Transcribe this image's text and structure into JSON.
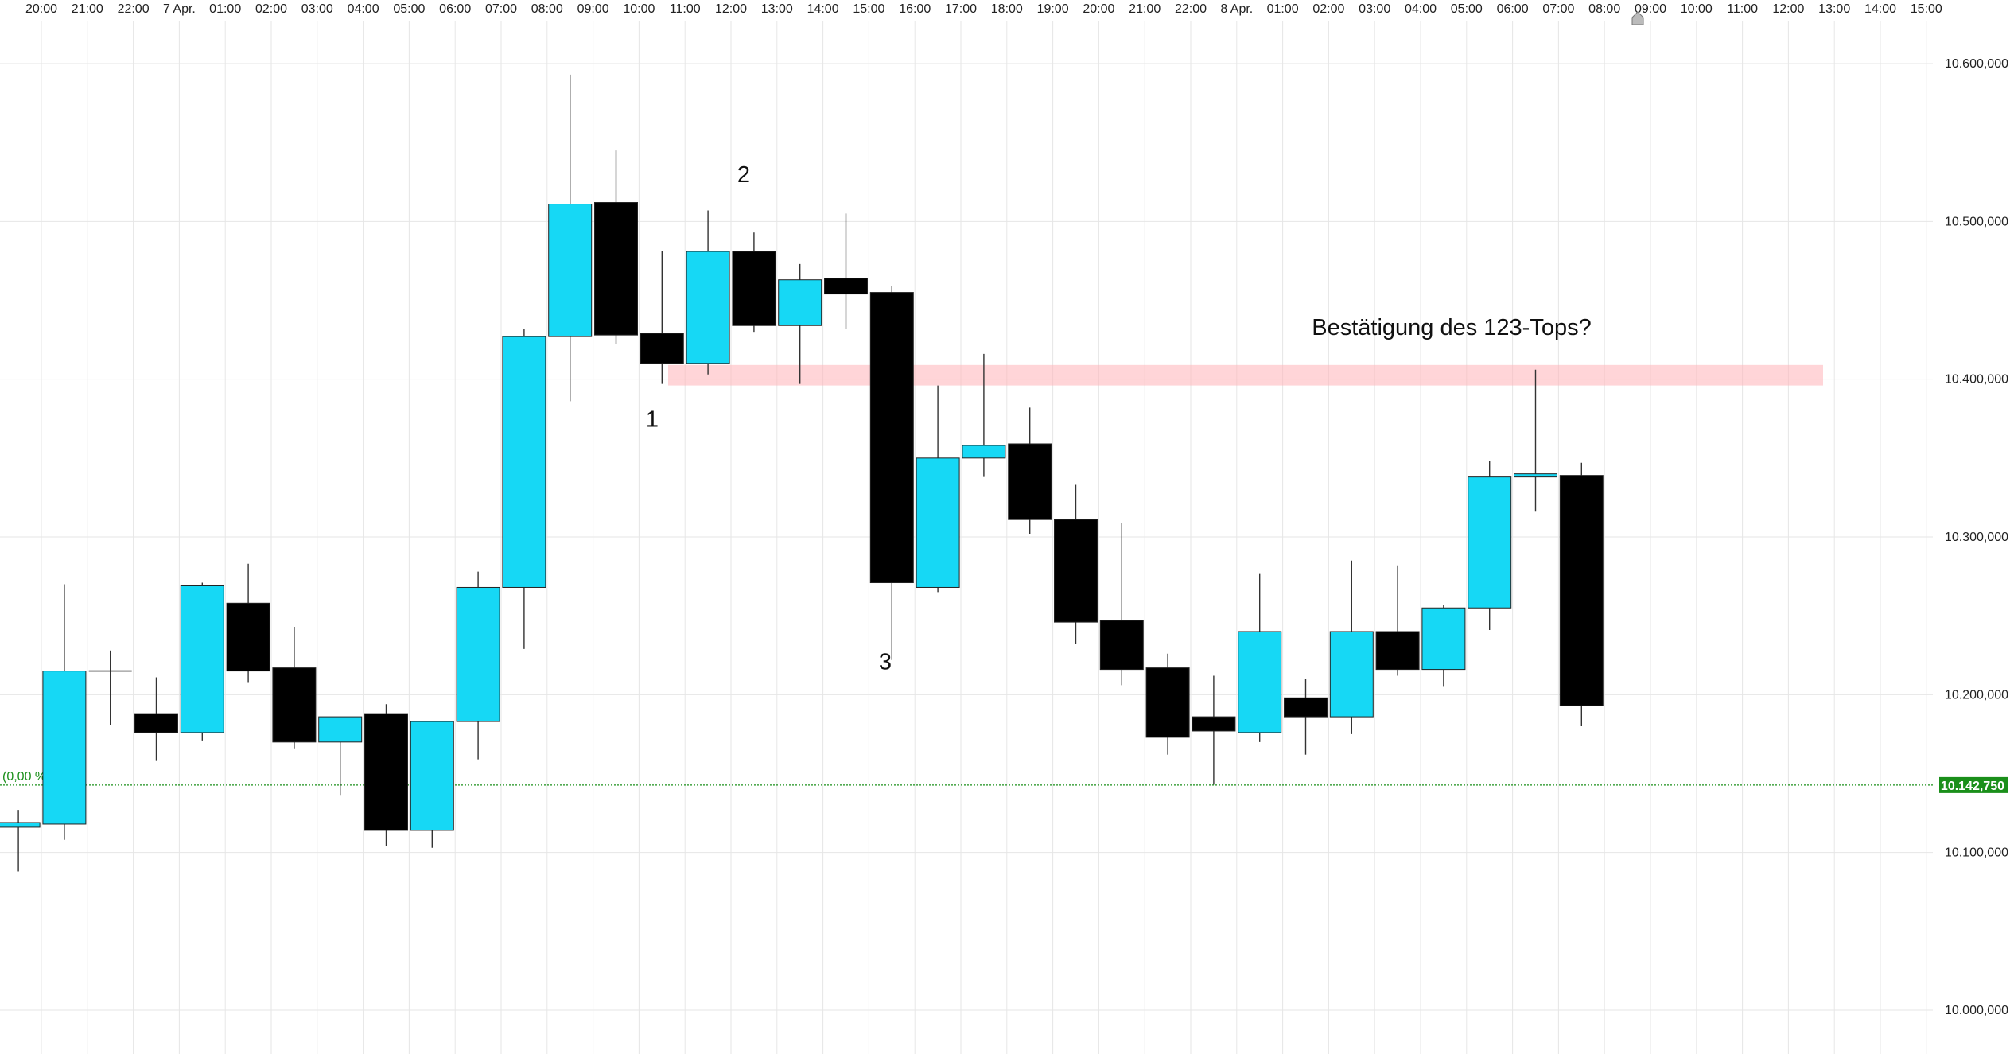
{
  "chart_data": {
    "type": "candlestick",
    "x_tick_labels": [
      "20:00",
      "21:00",
      "22:00",
      "7 Apr.",
      "01:00",
      "02:00",
      "03:00",
      "04:00",
      "05:00",
      "06:00",
      "07:00",
      "08:00",
      "09:00",
      "10:00",
      "11:00",
      "12:00",
      "13:00",
      "14:00",
      "15:00",
      "16:00",
      "17:00",
      "18:00",
      "19:00",
      "20:00",
      "21:00",
      "22:00",
      "8 Apr.",
      "01:00",
      "02:00",
      "03:00",
      "04:00",
      "05:00",
      "06:00",
      "07:00",
      "08:00",
      "09:00",
      "10:00",
      "11:00",
      "12:00",
      "13:00",
      "14:00",
      "15:00"
    ],
    "y_tick_labels": [
      "10.600,000",
      "10.500,000",
      "10.400,000",
      "10.300,000",
      "10.200,000",
      "10.100,000",
      "10.000,000"
    ],
    "y_ticks": [
      10600000,
      10500000,
      10400000,
      10300000,
      10200000,
      10100000,
      10000000
    ],
    "ylim": [
      9990000,
      10640000
    ],
    "grid": true,
    "colors": {
      "up": "#16d8f5",
      "down": "#000000",
      "wick": "#333333",
      "zone": "#ffb3b8",
      "reference": "#1a8f1a",
      "grid": "#e6e6e6"
    },
    "candles": [
      {
        "t": "19:30",
        "open": 10116000,
        "high": 10127000,
        "low": 10088000,
        "close": 10119000
      },
      {
        "t": "20:30",
        "open": 10118000,
        "high": 10270000,
        "low": 10108000,
        "close": 10215000
      },
      {
        "t": "21:30",
        "open": 10215000,
        "high": 10228000,
        "low": 10181000,
        "close": 10215000
      },
      {
        "t": "22:30",
        "open": 10188000,
        "high": 10211000,
        "low": 10158000,
        "close": 10176000
      },
      {
        "t": "23:30",
        "open": 10176000,
        "high": 10271000,
        "low": 10171000,
        "close": 10269000
      },
      {
        "t": "00:30",
        "open": 10258000,
        "high": 10283000,
        "low": 10208000,
        "close": 10215000
      },
      {
        "t": "01:30",
        "open": 10217000,
        "high": 10243000,
        "low": 10166000,
        "close": 10170000
      },
      {
        "t": "02:30",
        "open": 10170000,
        "high": 10185000,
        "low": 10136000,
        "close": 10186000
      },
      {
        "t": "03:30",
        "open": 10188000,
        "high": 10194000,
        "low": 10104000,
        "close": 10114000
      },
      {
        "t": "04:30",
        "open": 10114000,
        "high": 10183000,
        "low": 10103000,
        "close": 10183000
      },
      {
        "t": "05:30",
        "open": 10183000,
        "high": 10278000,
        "low": 10159000,
        "close": 10268000
      },
      {
        "t": "06:30",
        "open": 10268000,
        "high": 10432000,
        "low": 10229000,
        "close": 10427000
      },
      {
        "t": "07:30",
        "open": 10427000,
        "high": 10593000,
        "low": 10386000,
        "close": 10511000
      },
      {
        "t": "08:30",
        "open": 10512000,
        "high": 10545000,
        "low": 10422000,
        "close": 10428000
      },
      {
        "t": "09:30",
        "open": 10429000,
        "high": 10481000,
        "low": 10397000,
        "close": 10410000
      },
      {
        "t": "10:30",
        "open": 10410000,
        "high": 10507000,
        "low": 10403000,
        "close": 10481000
      },
      {
        "t": "11:30",
        "open": 10481000,
        "high": 10493000,
        "low": 10430000,
        "close": 10434000
      },
      {
        "t": "12:30",
        "open": 10434000,
        "high": 10473000,
        "low": 10397000,
        "close": 10463000
      },
      {
        "t": "13:30",
        "open": 10464000,
        "high": 10505000,
        "low": 10432000,
        "close": 10454000
      },
      {
        "t": "14:30",
        "open": 10455000,
        "high": 10459000,
        "low": 10222000,
        "close": 10271000
      },
      {
        "t": "15:30",
        "open": 10268000,
        "high": 10396000,
        "low": 10265000,
        "close": 10350000
      },
      {
        "t": "16:30",
        "open": 10350000,
        "high": 10416000,
        "low": 10338000,
        "close": 10358000
      },
      {
        "t": "17:30",
        "open": 10359000,
        "high": 10382000,
        "low": 10302000,
        "close": 10311000
      },
      {
        "t": "18:30",
        "open": 10311000,
        "high": 10333000,
        "low": 10232000,
        "close": 10246000
      },
      {
        "t": "19:30",
        "open": 10247000,
        "high": 10309000,
        "low": 10206000,
        "close": 10216000
      },
      {
        "t": "20:30",
        "open": 10217000,
        "high": 10226000,
        "low": 10162000,
        "close": 10173000
      },
      {
        "t": "21:30",
        "open": 10186000,
        "high": 10212000,
        "low": 10143000,
        "close": 10177000
      },
      {
        "t": "22:30",
        "open": 10176000,
        "high": 10277000,
        "low": 10170000,
        "close": 10240000
      },
      {
        "t": "23:30",
        "open": 10198000,
        "high": 10210000,
        "low": 10162000,
        "close": 10186000
      },
      {
        "t": "00:30",
        "open": 10186000,
        "high": 10285000,
        "low": 10175000,
        "close": 10240000
      },
      {
        "t": "01:30",
        "open": 10240000,
        "high": 10282000,
        "low": 10212000,
        "close": 10216000
      },
      {
        "t": "02:30",
        "open": 10216000,
        "high": 10257000,
        "low": 10205000,
        "close": 10255000
      },
      {
        "t": "03:30",
        "open": 10255000,
        "high": 10348000,
        "low": 10241000,
        "close": 10338000
      },
      {
        "t": "04:30",
        "open": 10338000,
        "high": 10406000,
        "low": 10316000,
        "close": 10340000
      },
      {
        "t": "05:30",
        "open": 10339000,
        "high": 10347000,
        "low": 10180000,
        "close": 10193000
      }
    ],
    "zone": {
      "from": 10396000,
      "to": 10409000,
      "start_t": "10:00",
      "end_t": "15:00"
    },
    "reference": {
      "value": 10142750,
      "left_label": "(0,00 %)",
      "right_label": "10.142,750"
    },
    "annotations": [
      {
        "text": "1",
        "t": "09:30",
        "y": 10375000
      },
      {
        "text": "2",
        "t": "11:30",
        "y": 10530000
      },
      {
        "text": "3",
        "t": "14:30",
        "y": 10221000
      },
      {
        "text": "Bestätigung des 123-Tops?",
        "t": "01:30",
        "y": 10433000
      }
    ]
  }
}
